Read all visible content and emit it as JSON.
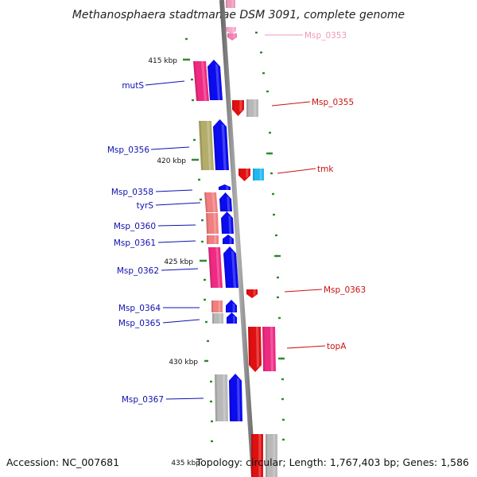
{
  "title": "Methanosphaera stadtmanae DSM 3091, complete genome",
  "footer": {
    "accession": "Accession: NC_007681",
    "topology": "Topology: circular; Length: 1,767,403 bp; Genes: 1,586"
  },
  "colors": {
    "backbone": "#8a8a8a",
    "tick": "#2e8b2e",
    "label_left": "#1010b0",
    "label_right": "#cc1111",
    "label_faded": "#ee99bb",
    "blue": "#0b0bf0",
    "red": "#e01010",
    "pink": "#ee2a82",
    "salmon": "#f07f7f",
    "olive": "#b3ac6a",
    "gray": "#b8b8b8",
    "cyan": "#20b8f0"
  },
  "scale_labels": [
    "415 kbp",
    "420 kbp",
    "425 kbp",
    "430 kbp",
    "435 kbp"
  ],
  "gene_labels": {
    "left": [
      "mutS",
      "Msp_0356",
      "Msp_0358",
      "tyrS",
      "Msp_0360",
      "Msp_0361",
      "Msp_0362",
      "Msp_0364",
      "Msp_0365",
      "Msp_0367"
    ],
    "right": [
      "Msp_0353",
      "Msp_0355",
      "tmk",
      "Msp_0363",
      "topA"
    ]
  }
}
